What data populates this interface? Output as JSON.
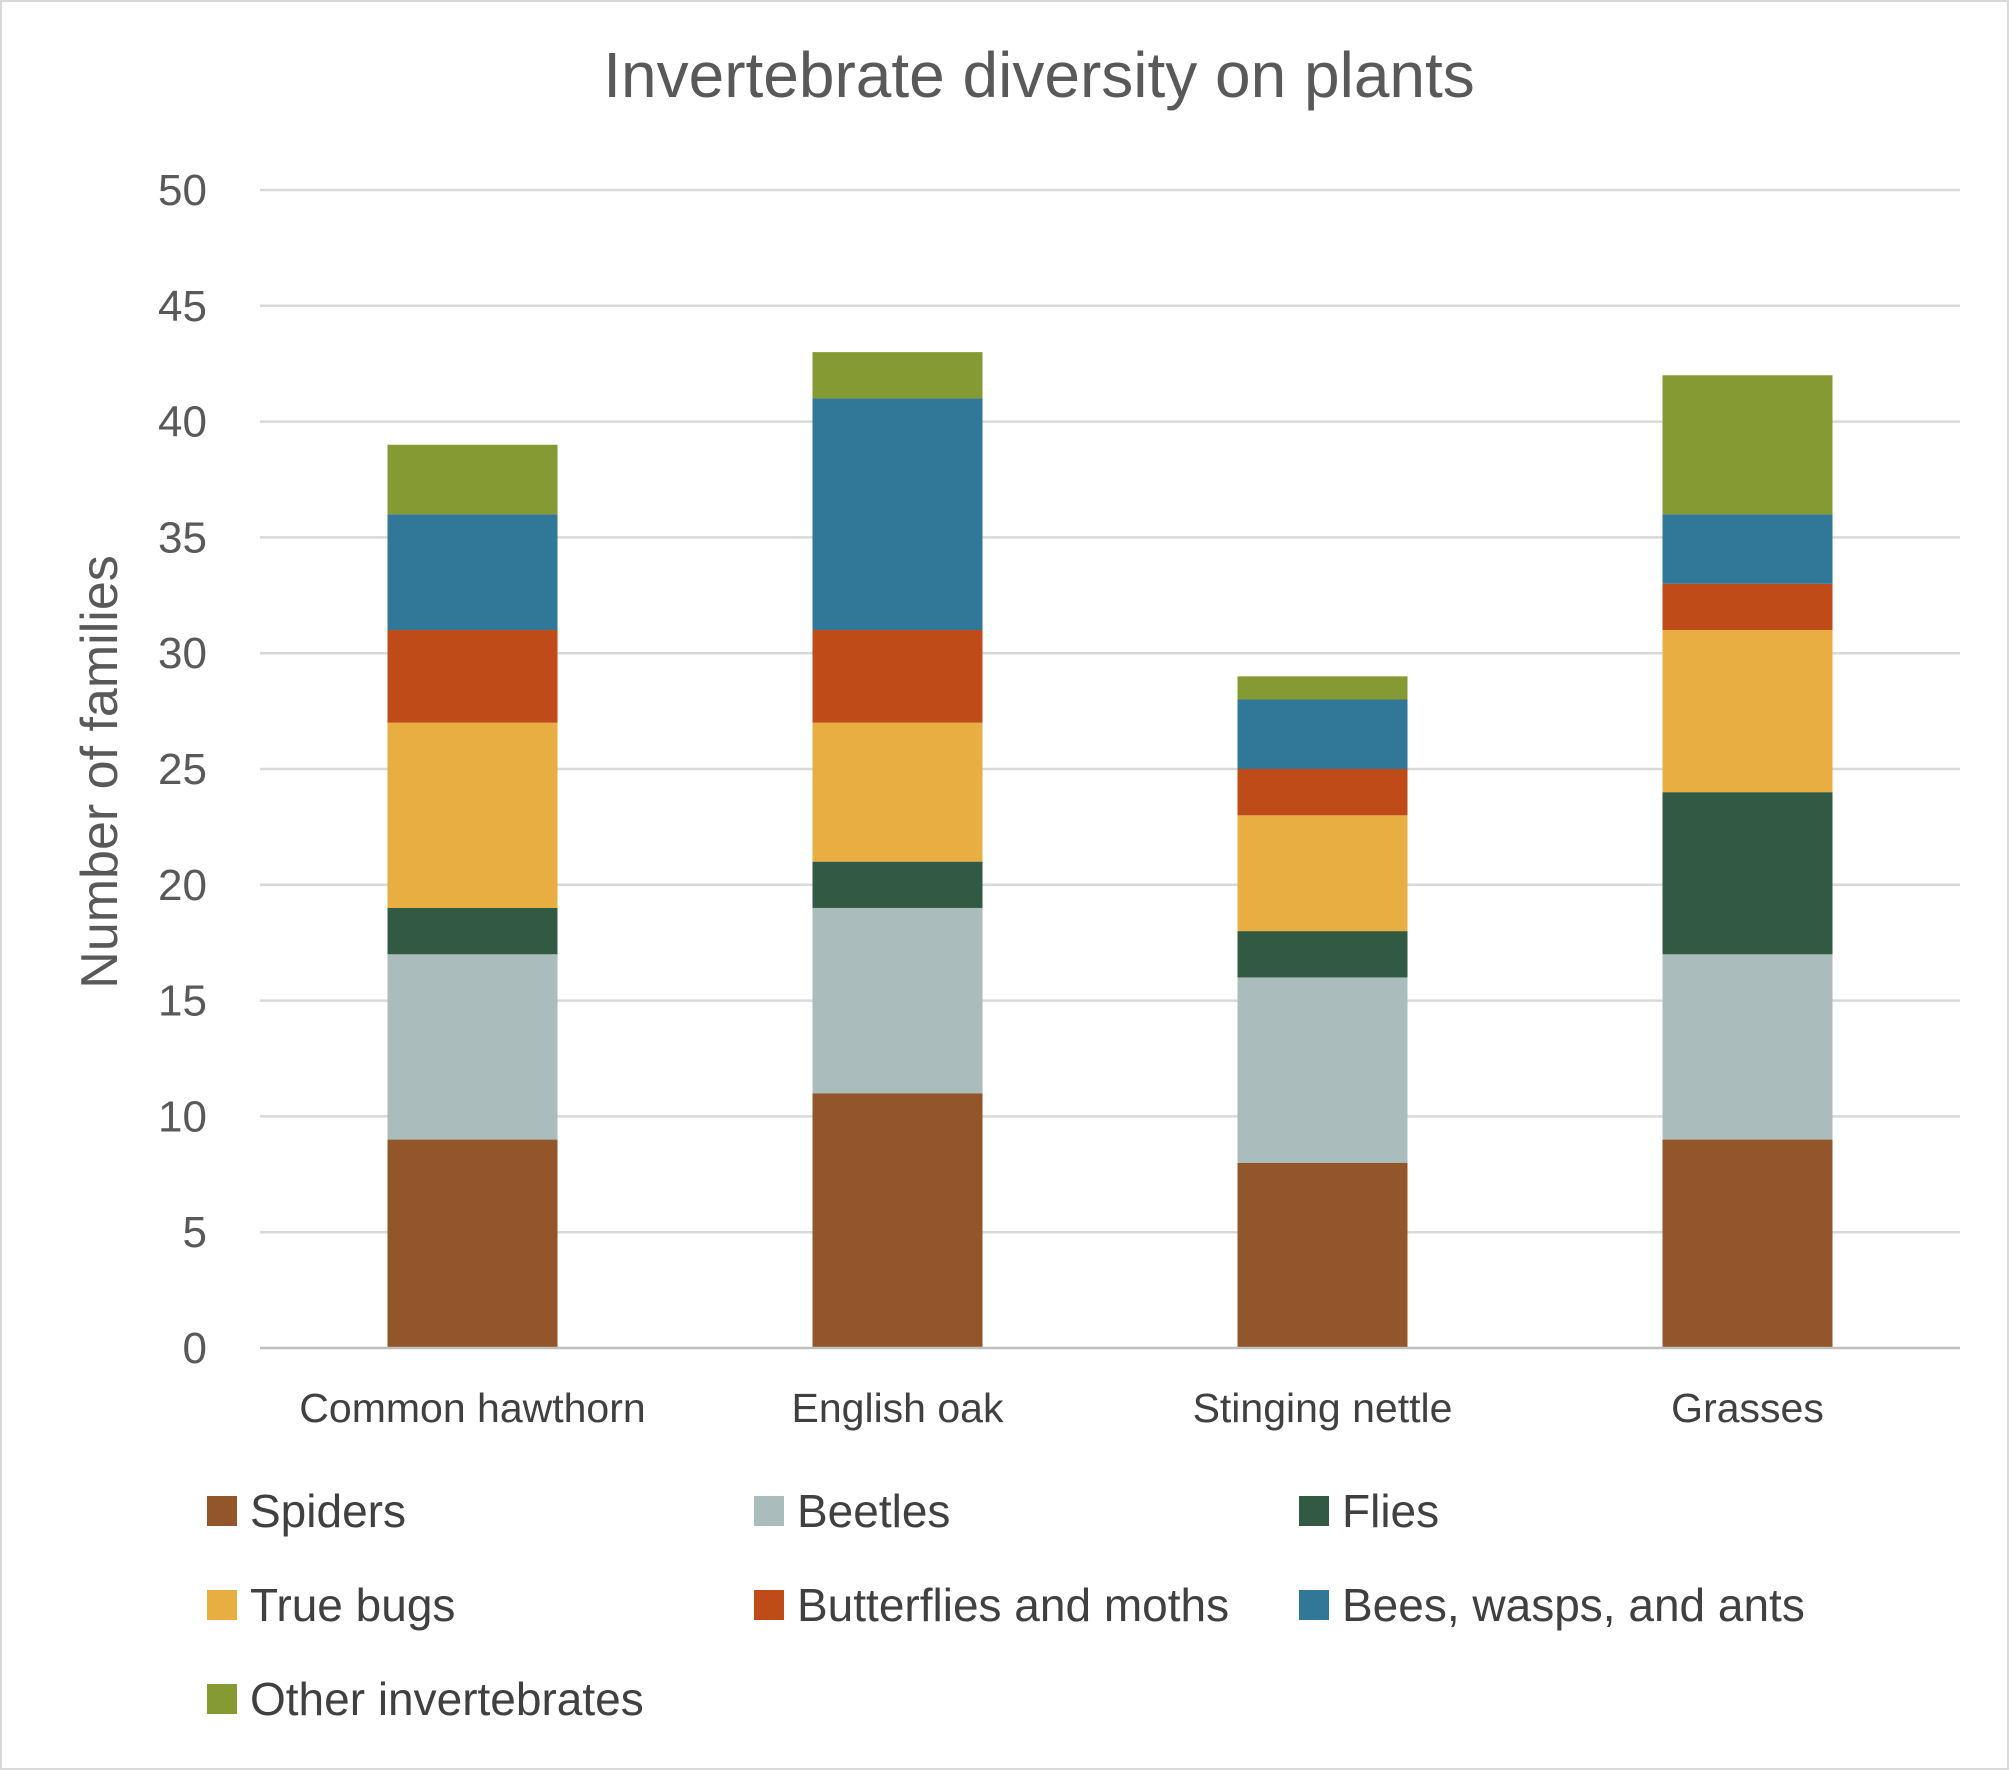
{
  "chart_data": {
    "type": "bar",
    "stacked": true,
    "title": "Invertebrate diversity on plants",
    "xlabel": "",
    "ylabel": "Number of families",
    "ylim": [
      0,
      50
    ],
    "yticks": [
      0,
      5,
      10,
      15,
      20,
      25,
      30,
      35,
      40,
      45,
      50
    ],
    "grid": true,
    "legend_position": "bottom",
    "categories": [
      "Common hawthorn",
      "English oak",
      "Stinging nettle",
      "Grasses"
    ],
    "series": [
      {
        "name": "Spiders",
        "color": "#93552A",
        "values": [
          9,
          11,
          8,
          9
        ]
      },
      {
        "name": "Beetles",
        "color": "#AABDBC",
        "values": [
          8,
          8,
          8,
          8
        ]
      },
      {
        "name": "Flies",
        "color": "#325A43",
        "values": [
          2,
          2,
          2,
          7
        ]
      },
      {
        "name": "True bugs",
        "color": "#E8AE41",
        "values": [
          8,
          6,
          5,
          7
        ]
      },
      {
        "name": "Butterflies and moths",
        "color": "#BE4B18",
        "values": [
          4,
          4,
          2,
          2
        ]
      },
      {
        "name": "Bees, wasps, and ants",
        "color": "#317797",
        "values": [
          5,
          10,
          3,
          3
        ]
      },
      {
        "name": "Other invertebrates",
        "color": "#869A34",
        "values": [
          3,
          2,
          1,
          6
        ]
      }
    ]
  }
}
